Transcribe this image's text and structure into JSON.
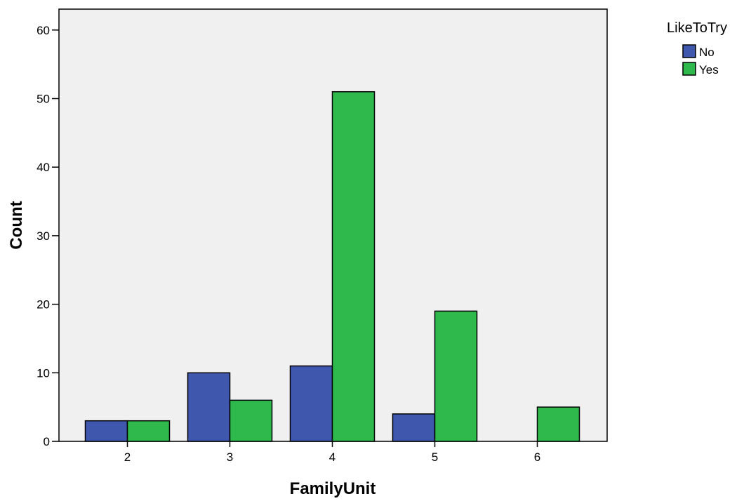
{
  "chart_data": {
    "type": "bar",
    "title": "",
    "xlabel": "FamilyUnit",
    "ylabel": "Count",
    "categories": [
      "2",
      "3",
      "4",
      "5",
      "6"
    ],
    "series": [
      {
        "name": "No",
        "values": [
          3,
          10,
          11,
          4,
          0
        ],
        "color": "#3f58ad"
      },
      {
        "name": "Yes",
        "values": [
          3,
          6,
          51,
          19,
          5
        ],
        "color": "#2fb84b"
      }
    ],
    "ylim": [
      0,
      62
    ],
    "yticks": [
      0,
      10,
      20,
      30,
      40,
      50,
      60
    ],
    "grid": false,
    "plot_background": "#f0f0f0",
    "legend": {
      "title": "LikeToTry",
      "position": "top-right"
    }
  }
}
